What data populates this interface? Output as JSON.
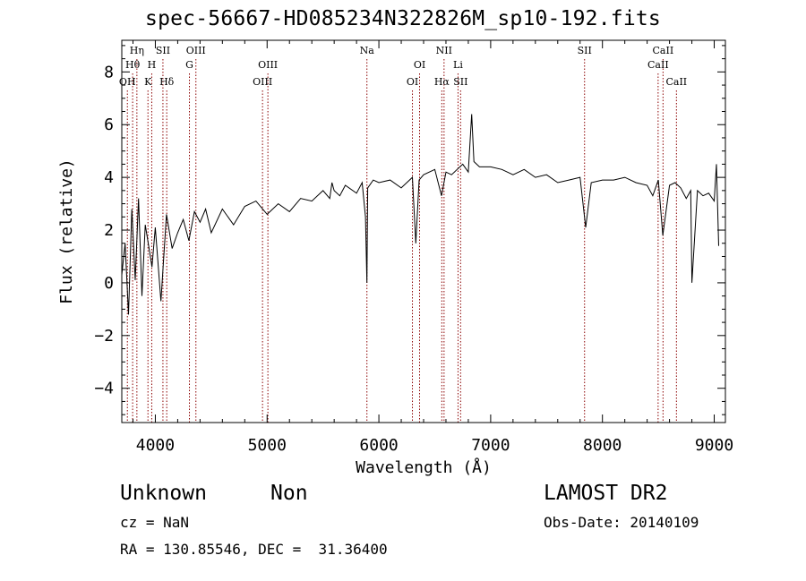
{
  "title": "spec-56667-HD085234N322826M_sp10-192.fits",
  "info": {
    "class_label": "Unknown",
    "subclass_label": "Non",
    "survey": "LAMOST DR2",
    "cz": "cz = NaN",
    "obs_date": "Obs-Date: 20140109",
    "coords": "RA = 130.85546, DEC =  31.36400"
  },
  "chart_data": {
    "type": "line",
    "xlabel": "Wavelength (Å)",
    "ylabel": "Flux (relative)",
    "xlim": [
      3700,
      9100
    ],
    "ylim": [
      -5.3,
      9.2
    ],
    "x_ticks": [
      4000,
      5000,
      6000,
      7000,
      8000,
      9000
    ],
    "y_ticks": [
      -4,
      -2,
      0,
      2,
      4,
      6,
      8
    ],
    "grid": false,
    "line_color": "#000000",
    "marker_color": "#8b0000",
    "series": [
      {
        "x": [
          3700,
          3730,
          3760,
          3790,
          3820,
          3850,
          3880,
          3910,
          3940,
          3970,
          4000,
          4050,
          4100,
          4150,
          4200,
          4250,
          4300,
          4350,
          4400,
          4450,
          4500,
          4600,
          4700,
          4800,
          4900,
          5000,
          5100,
          5200,
          5300,
          5400,
          5500,
          5560,
          5580,
          5600,
          5650,
          5700,
          5800,
          5850,
          5880,
          5893,
          5900,
          5950,
          6000,
          6100,
          6200,
          6300,
          6330,
          6360,
          6400,
          6500,
          6560,
          6600,
          6650,
          6700,
          6750,
          6800,
          6830,
          6850,
          6900,
          7000,
          7100,
          7200,
          7300,
          7400,
          7500,
          7600,
          7700,
          7800,
          7850,
          7900,
          8000,
          8100,
          8200,
          8300,
          8400,
          8450,
          8500,
          8540,
          8600,
          8650,
          8700,
          8750,
          8790,
          8800,
          8850,
          8900,
          8950,
          9000,
          9020,
          9040
        ],
        "y": [
          0.3,
          1.5,
          -1.2,
          2.8,
          0.1,
          3.2,
          -0.5,
          2.2,
          1.4,
          0.6,
          2.1,
          -0.7,
          2.6,
          1.3,
          1.9,
          2.4,
          1.6,
          2.7,
          2.3,
          2.8,
          1.9,
          2.8,
          2.2,
          2.9,
          3.1,
          2.6,
          3.0,
          2.7,
          3.2,
          3.1,
          3.5,
          3.2,
          3.8,
          3.5,
          3.3,
          3.7,
          3.4,
          3.8,
          2.5,
          0.0,
          3.6,
          3.9,
          3.8,
          3.9,
          3.6,
          4.0,
          1.5,
          3.9,
          4.1,
          4.3,
          3.3,
          4.2,
          4.1,
          4.3,
          4.5,
          4.2,
          6.4,
          4.6,
          4.4,
          4.4,
          4.3,
          4.1,
          4.3,
          4.0,
          4.1,
          3.8,
          3.9,
          4.0,
          2.1,
          3.8,
          3.9,
          3.9,
          4.0,
          3.8,
          3.7,
          3.3,
          3.9,
          1.8,
          3.7,
          3.8,
          3.6,
          3.2,
          3.5,
          0.0,
          3.5,
          3.3,
          3.4,
          3.1,
          4.5,
          1.4
        ]
      }
    ],
    "lines": [
      {
        "name": "Hη",
        "x": 3835,
        "row": 0
      },
      {
        "name": "Hθ",
        "x": 3797,
        "row": 1
      },
      {
        "name": "OH",
        "x": 3750,
        "row": 2
      },
      {
        "name": "SII",
        "x": 4068,
        "row": 0
      },
      {
        "name": "H",
        "x": 3968,
        "row": 1
      },
      {
        "name": "K",
        "x": 3934,
        "row": 2
      },
      {
        "name": "Hδ",
        "x": 4102,
        "row": 2
      },
      {
        "name": "OIII",
        "x": 4363,
        "row": 0
      },
      {
        "name": "G",
        "x": 4305,
        "row": 1
      },
      {
        "name": "OIII",
        "x": 5007,
        "row": 1
      },
      {
        "name": "OIII",
        "x": 4959,
        "row": 2
      },
      {
        "name": "Na",
        "x": 5893,
        "row": 0
      },
      {
        "name": "NII",
        "x": 6583,
        "row": 0
      },
      {
        "name": "OI",
        "x": 6364,
        "row": 1
      },
      {
        "name": "Li",
        "x": 6708,
        "row": 1
      },
      {
        "name": "OI",
        "x": 6300,
        "row": 2
      },
      {
        "name": "Hα",
        "x": 6563,
        "row": 2
      },
      {
        "name": "SII",
        "x": 6731,
        "row": 2
      },
      {
        "name": "SII",
        "x": 7840,
        "row": 0
      },
      {
        "name": "CaII",
        "x": 8542,
        "row": 0
      },
      {
        "name": "CaII",
        "x": 8498,
        "row": 1
      },
      {
        "name": "CaII",
        "x": 8662,
        "row": 2
      }
    ]
  }
}
